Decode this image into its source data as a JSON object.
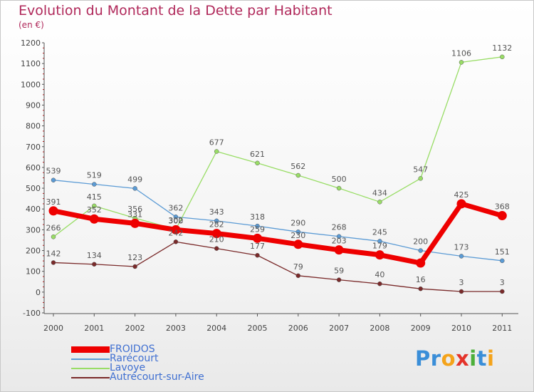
{
  "title": "Evolution du Montant de la Dette par Habitant",
  "subtitle": "(en €)",
  "logo": "Proxiti",
  "chart_data": {
    "type": "line",
    "x": [
      "2000",
      "2001",
      "2002",
      "2003",
      "2004",
      "2005",
      "2006",
      "2007",
      "2008",
      "2009",
      "2010",
      "2011"
    ],
    "ylim": [
      -100,
      1200
    ],
    "yticks": [
      -100,
      0,
      100,
      200,
      300,
      400,
      500,
      600,
      700,
      800,
      900,
      1000,
      1100,
      1200
    ],
    "grid": false,
    "legend_position": "bottom-left",
    "series": [
      {
        "name": "FROIDOS",
        "color": "#ee0000",
        "values": [
          391,
          352,
          331,
          300,
          282,
          259,
          230,
          203,
          179,
          140,
          425,
          368
        ],
        "labels": [
          "391",
          "352",
          "331",
          "300",
          "282",
          "259",
          "230",
          "203",
          "179",
          "",
          "425",
          "368"
        ]
      },
      {
        "name": "Rarécourt",
        "color": "#5b9bd5",
        "values": [
          539,
          519,
          499,
          362,
          343,
          318,
          290,
          268,
          245,
          200,
          173,
          151
        ],
        "labels": [
          "539",
          "519",
          "499",
          "362",
          "343",
          "318",
          "290",
          "268",
          "245",
          "200",
          "173",
          "151"
        ]
      },
      {
        "name": "Lavoye",
        "color": "#99dd66",
        "values": [
          266,
          415,
          356,
          302,
          677,
          621,
          562,
          500,
          434,
          547,
          1106,
          1132
        ],
        "labels": [
          "266",
          "415",
          "356",
          "302",
          "677",
          "621",
          "562",
          "500",
          "434",
          "547",
          "1106",
          "1132"
        ]
      },
      {
        "name": "Autrécourt-sur-Aire",
        "color": "#7a2a2a",
        "values": [
          142,
          134,
          123,
          242,
          210,
          177,
          79,
          59,
          40,
          16,
          3,
          3
        ],
        "labels": [
          "142",
          "134",
          "123",
          "242",
          "210",
          "177",
          "79",
          "59",
          "40",
          "16",
          "3",
          "3"
        ]
      }
    ]
  }
}
